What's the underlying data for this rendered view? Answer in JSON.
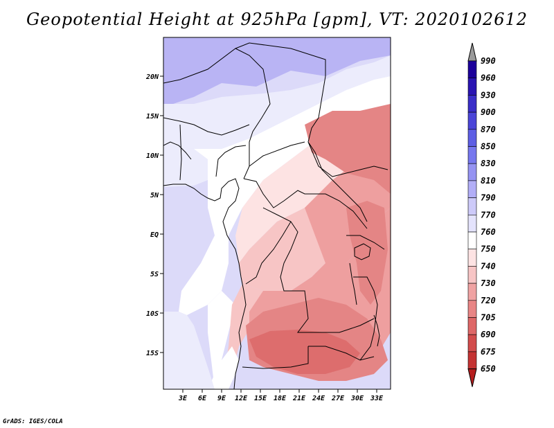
{
  "title": "Geopotential Height at 925hPa [gpm], VT: 2020102612",
  "credit": "GrADS: IGES/COLA",
  "lat_labels": [
    "20N",
    "15N",
    "10N",
    "5N",
    "EQ",
    "5S",
    "10S",
    "15S"
  ],
  "lon_labels": [
    "3E",
    "6E",
    "9E",
    "12E",
    "15E",
    "18E",
    "21E",
    "24E",
    "27E",
    "30E",
    "33E"
  ],
  "colorbar": {
    "levels": [
      "990",
      "960",
      "930",
      "900",
      "870",
      "850",
      "830",
      "810",
      "790",
      "770",
      "760",
      "750",
      "740",
      "730",
      "720",
      "705",
      "690",
      "675",
      "650"
    ],
    "colors": [
      "#1c009a",
      "#2a14b2",
      "#3a2ec8",
      "#4b45d8",
      "#5d5ee4",
      "#7677ee",
      "#9593f2",
      "#b2aef7",
      "#cdcaf9",
      "#e4e3fc",
      "#ffffff",
      "#fde3e3",
      "#f7c5c5",
      "#f0a3a3",
      "#e88585",
      "#de6767",
      "#d24c4c",
      "#c43333",
      "#b51e1e"
    ],
    "top_color": "#9a9a9a"
  },
  "map_colors": {
    "ocean_north": "#b9b4f4",
    "light_purple": "#dcdaf9",
    "pale": "#ececfc",
    "white": "#ffffff",
    "pink_light": "#fde3e3",
    "pink": "#f7c5c5",
    "red_mid": "#ee9f9f",
    "red": "#e48585",
    "red_dark": "#dd6d6d"
  }
}
